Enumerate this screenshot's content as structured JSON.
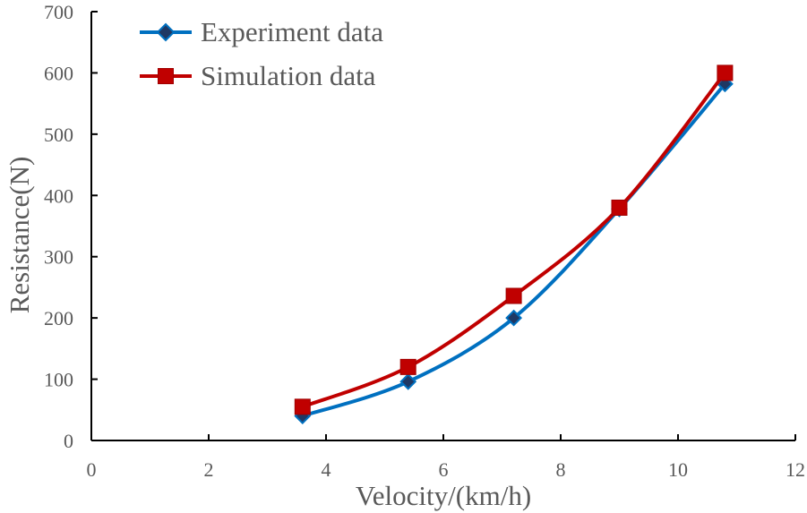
{
  "chart_data": {
    "type": "line",
    "title": "",
    "xlabel": "Velocity/(km/h)",
    "ylabel": "Resistance(N)",
    "xlim": [
      0,
      12
    ],
    "ylim": [
      0,
      700
    ],
    "x_ticks": [
      0,
      2,
      4,
      6,
      8,
      10,
      12
    ],
    "x_tick_labels": [
      "0",
      "2",
      "4",
      "6",
      "8",
      "10",
      "12"
    ],
    "y_ticks": [
      0,
      100,
      200,
      300,
      400,
      500,
      600,
      700
    ],
    "y_tick_labels": [
      "0",
      "100",
      "200",
      "300",
      "400",
      "500",
      "600",
      "700"
    ],
    "grid": false,
    "legend_position": "top-left",
    "series": [
      {
        "name": "Experiment data",
        "color": "#0070C0",
        "marker": "diamond",
        "x": [
          3.6,
          5.4,
          7.2,
          9.0,
          10.8
        ],
        "values": [
          40,
          96,
          200,
          378,
          582
        ]
      },
      {
        "name": "Simulation data",
        "color": "#C00000",
        "marker": "square",
        "x": [
          3.6,
          5.4,
          7.2,
          9.0,
          10.8
        ],
        "values": [
          55,
          120,
          236,
          380,
          600
        ]
      }
    ]
  }
}
